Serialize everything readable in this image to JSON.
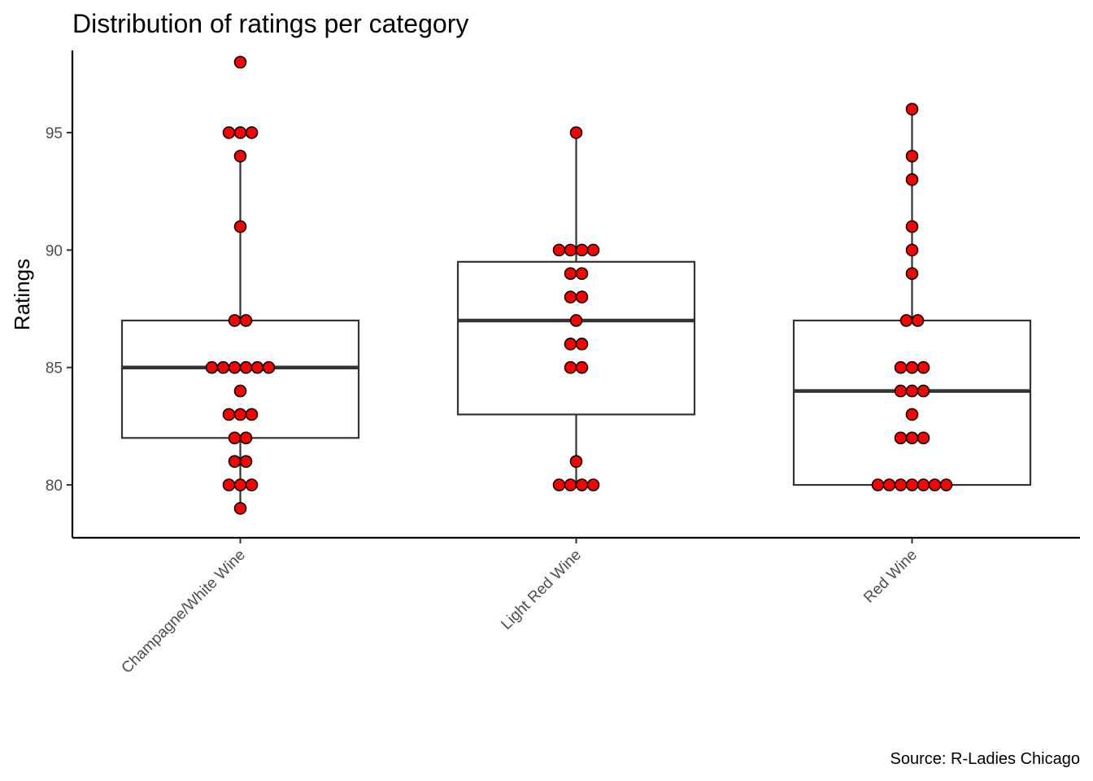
{
  "chart_data": {
    "type": "box",
    "title": "Distribution of ratings per category",
    "xlabel": "",
    "ylabel": "Ratings",
    "caption": "Source: R-Ladies Chicago",
    "ylim": [
      77.75,
      98.5
    ],
    "y_ticks": [
      80,
      85,
      90,
      95
    ],
    "categories": [
      "Champagne/White Wine",
      "Light Red Wine",
      "Red Wine"
    ],
    "boxes": [
      {
        "category": "Champagne/White Wine",
        "q1": 82,
        "median": 85,
        "q3": 87,
        "whisker_low": 79,
        "whisker_high": 94
      },
      {
        "category": "Light Red Wine",
        "q1": 83,
        "median": 87,
        "q3": 89.5,
        "whisker_low": 80,
        "whisker_high": 95
      },
      {
        "category": "Red Wine",
        "q1": 80,
        "median": 84,
        "q3": 87,
        "whisker_low": 80,
        "whisker_high": 96
      }
    ],
    "points": [
      {
        "category": "Champagne/White Wine",
        "values": [
          98,
          95,
          95,
          95,
          94,
          91,
          87,
          87,
          85,
          85,
          85,
          85,
          85,
          85,
          84,
          83,
          83,
          83,
          82,
          82,
          81,
          81,
          80,
          80,
          80,
          79
        ]
      },
      {
        "category": "Light Red Wine",
        "values": [
          95,
          90,
          90,
          90,
          90,
          89,
          89,
          88,
          88,
          87,
          86,
          86,
          85,
          85,
          81,
          80,
          80,
          80,
          80
        ]
      },
      {
        "category": "Red Wine",
        "values": [
          96,
          94,
          93,
          91,
          90,
          89,
          87,
          87,
          85,
          85,
          85,
          84,
          84,
          84,
          83,
          82,
          82,
          82,
          80,
          80,
          80,
          80,
          80,
          80,
          80
        ]
      }
    ],
    "point_fill": "#ff0000",
    "point_stroke": "#000000",
    "grid": false,
    "legend": "none"
  }
}
